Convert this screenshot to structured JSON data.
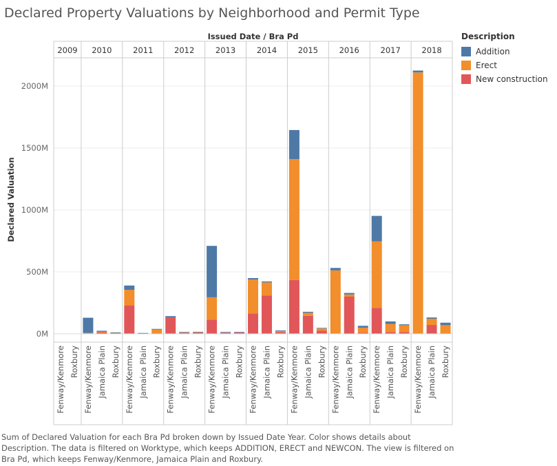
{
  "title": "Declared Property Valuations by Neighborhood and Permit Type",
  "caption": "Sum of Declared Valuation for each Bra Pd broken down by Issued Date Year.  Color shows details about Description.  The data is filtered on Worktype, which keeps ADDITION, ERECT and NEWCON. The view is filtered on Bra Pd, which keeps Fenway/Kenmore, Jamaica Plain and Roxbury.",
  "legend": {
    "title": "Description",
    "items": [
      {
        "label": "Addition",
        "color": "#4e79a7"
      },
      {
        "label": "Erect",
        "color": "#f28e2b"
      },
      {
        "label": "New construction",
        "color": "#e15759"
      }
    ]
  },
  "chart_data": {
    "type": "bar",
    "stacked": true,
    "title": "Declared Property Valuations by Neighborhood and Permit Type",
    "column_header": "Issued Date  /  Bra Pd",
    "ylabel": "Declared Valuation",
    "ylim": [
      -25,
      2250
    ],
    "yticks": [
      0,
      500,
      1000,
      1500,
      2000
    ],
    "ytick_labels": [
      "0M",
      "500M",
      "1000M",
      "1500M",
      "2000M"
    ],
    "grid": true,
    "legend_position": "right",
    "years": [
      {
        "year": "2009",
        "neighborhoods": [
          "Fenway/Kenmore",
          "Roxbury"
        ],
        "new_construction": [
          0,
          0
        ],
        "erect": [
          0,
          0
        ],
        "addition": [
          0,
          0
        ]
      },
      {
        "year": "2010",
        "neighborhoods": [
          "Fenway/Kenmore",
          "Jamaica Plain",
          "Roxbury"
        ],
        "new_construction": [
          2,
          12,
          6
        ],
        "erect": [
          5,
          5,
          3
        ],
        "addition": [
          123,
          8,
          3
        ]
      },
      {
        "year": "2011",
        "neighborhoods": [
          "Fenway/Kenmore",
          "Jamaica Plain",
          "Roxbury"
        ],
        "new_construction": [
          230,
          3,
          5
        ],
        "erect": [
          125,
          0,
          30
        ],
        "addition": [
          35,
          4,
          5
        ]
      },
      {
        "year": "2012",
        "neighborhoods": [
          "Fenway/Kenmore",
          "Jamaica Plain",
          "Roxbury"
        ],
        "new_construction": [
          133,
          8,
          10
        ],
        "erect": [
          0,
          5,
          3
        ],
        "addition": [
          10,
          2,
          3
        ]
      },
      {
        "year": "2013",
        "neighborhoods": [
          "Fenway/Kenmore",
          "Jamaica Plain",
          "Roxbury"
        ],
        "new_construction": [
          115,
          10,
          12
        ],
        "erect": [
          180,
          0,
          0
        ],
        "addition": [
          415,
          5,
          3
        ]
      },
      {
        "year": "2014",
        "neighborhoods": [
          "Fenway/Kenmore",
          "Jamaica Plain",
          "Roxbury"
        ],
        "new_construction": [
          165,
          310,
          15
        ],
        "erect": [
          273,
          105,
          8
        ],
        "addition": [
          12,
          8,
          5
        ]
      },
      {
        "year": "2015",
        "neighborhoods": [
          "Fenway/Kenmore",
          "Jamaica Plain",
          "Roxbury"
        ],
        "new_construction": [
          435,
          145,
          25
        ],
        "erect": [
          975,
          25,
          18
        ],
        "addition": [
          235,
          8,
          5
        ]
      },
      {
        "year": "2016",
        "neighborhoods": [
          "Fenway/Kenmore",
          "Jamaica Plain",
          "Roxbury"
        ],
        "new_construction": [
          0,
          300,
          10
        ],
        "erect": [
          512,
          18,
          40
        ],
        "addition": [
          20,
          12,
          15
        ]
      },
      {
        "year": "2017",
        "neighborhoods": [
          "Fenway/Kenmore",
          "Jamaica Plain",
          "Roxbury"
        ],
        "new_construction": [
          210,
          15,
          15
        ],
        "erect": [
          537,
          65,
          55
        ],
        "addition": [
          205,
          20,
          7
        ]
      },
      {
        "year": "2018",
        "neighborhoods": [
          "Fenway/Kenmore",
          "Jamaica Plain",
          "Roxbury"
        ],
        "new_construction": [
          0,
          72,
          5
        ],
        "erect": [
          2110,
          50,
          65
        ],
        "addition": [
          15,
          10,
          20
        ]
      }
    ]
  }
}
